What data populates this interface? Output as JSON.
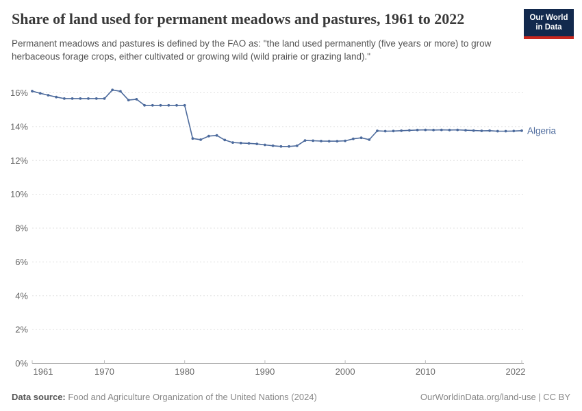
{
  "header": {
    "title": "Share of land used for permanent meadows and pastures, 1961 to 2022",
    "subtitle": "Permanent meadows and pastures is defined by the FAO as: \"the land used permanently (five years or more) to grow herbaceous forage crops, either cultivated or growing wild (wild prairie or grazing land).\"",
    "logo": {
      "line1": "Our World",
      "line2": "in Data",
      "bg": "#12294d",
      "accent": "#c9271e"
    }
  },
  "chart_data": {
    "type": "line",
    "title": "Share of land used for permanent meadows and pastures, 1961 to 2022",
    "xlabel": "",
    "ylabel": "",
    "xlim": [
      1961,
      2022
    ],
    "ylim": [
      0,
      16
    ],
    "grid": "horizontal-dashed",
    "legend_position": "end-of-line-label",
    "x_ticks": [
      1961,
      1970,
      1980,
      1990,
      2000,
      2010,
      2022
    ],
    "y_ticks": [
      0,
      2,
      4,
      6,
      8,
      10,
      12,
      14,
      16
    ],
    "y_tick_suffix": "%",
    "line_color": "#4c6a9c",
    "series": [
      {
        "name": "Algeria",
        "x": [
          1961,
          1962,
          1963,
          1964,
          1965,
          1966,
          1967,
          1968,
          1969,
          1970,
          1971,
          1972,
          1973,
          1974,
          1975,
          1976,
          1977,
          1978,
          1979,
          1980,
          1981,
          1982,
          1983,
          1984,
          1985,
          1986,
          1987,
          1988,
          1989,
          1990,
          1991,
          1992,
          1993,
          1994,
          1995,
          1996,
          1997,
          1998,
          1999,
          2000,
          2001,
          2002,
          2003,
          2004,
          2005,
          2006,
          2007,
          2008,
          2009,
          2010,
          2011,
          2012,
          2013,
          2014,
          2015,
          2016,
          2017,
          2018,
          2019,
          2020,
          2021,
          2022
        ],
        "values": [
          16.1,
          15.97,
          15.86,
          15.75,
          15.66,
          15.66,
          15.66,
          15.66,
          15.66,
          15.66,
          16.17,
          16.09,
          15.57,
          15.62,
          15.26,
          15.26,
          15.26,
          15.26,
          15.26,
          15.26,
          13.3,
          13.23,
          13.44,
          13.48,
          13.21,
          13.06,
          13.03,
          13.01,
          12.98,
          12.92,
          12.87,
          12.83,
          12.83,
          12.87,
          13.18,
          13.17,
          13.15,
          13.14,
          13.14,
          13.16,
          13.28,
          13.34,
          13.23,
          13.75,
          13.73,
          13.74,
          13.76,
          13.78,
          13.8,
          13.81,
          13.8,
          13.81,
          13.8,
          13.81,
          13.79,
          13.77,
          13.75,
          13.76,
          13.73,
          13.73,
          13.74,
          13.76
        ]
      }
    ]
  },
  "footer": {
    "source_label": "Data source:",
    "source_text": " Food and Agriculture Organization of the United Nations (2024)",
    "credit": "OurWorldinData.org/land-use | CC BY"
  }
}
